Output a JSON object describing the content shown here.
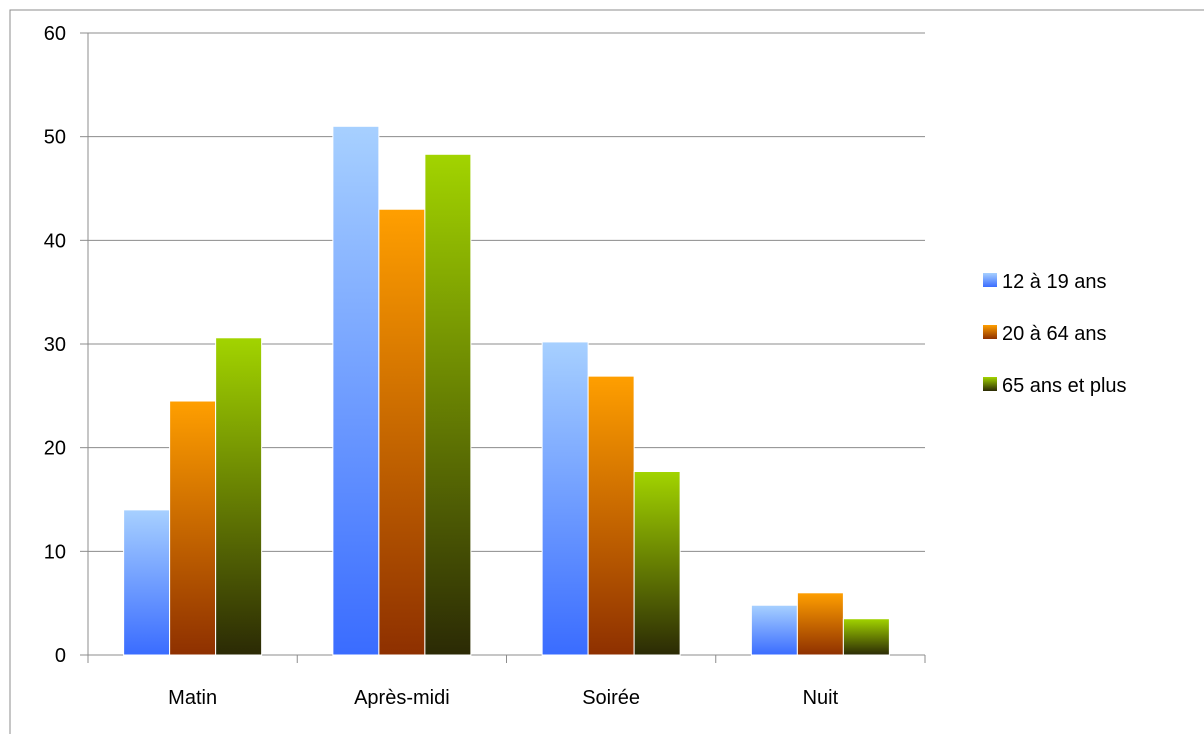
{
  "chart_data": {
    "type": "bar",
    "categories": [
      "Matin",
      "Après-midi",
      "Soirée",
      "Nuit"
    ],
    "series": [
      {
        "name": "12 à 19 ans",
        "values": [
          14,
          51,
          30.2,
          4.8
        ],
        "color": "#3a6cff",
        "color_light": "#a7d0ff"
      },
      {
        "name": "20 à 64 ans",
        "values": [
          24.5,
          43,
          26.9,
          6
        ],
        "color": "#8e3000",
        "color_light": "#ff9f00"
      },
      {
        "name": "65 ans et plus",
        "values": [
          30.6,
          48.3,
          17.7,
          3.5
        ],
        "color": "#2b2a05",
        "color_light": "#a2d400"
      }
    ],
    "yticks": [
      0,
      10,
      20,
      30,
      40,
      50,
      60
    ],
    "ylim": [
      0,
      60
    ],
    "title": "",
    "xlabel": "",
    "ylabel": "",
    "grid": true,
    "legend_position": "right"
  }
}
